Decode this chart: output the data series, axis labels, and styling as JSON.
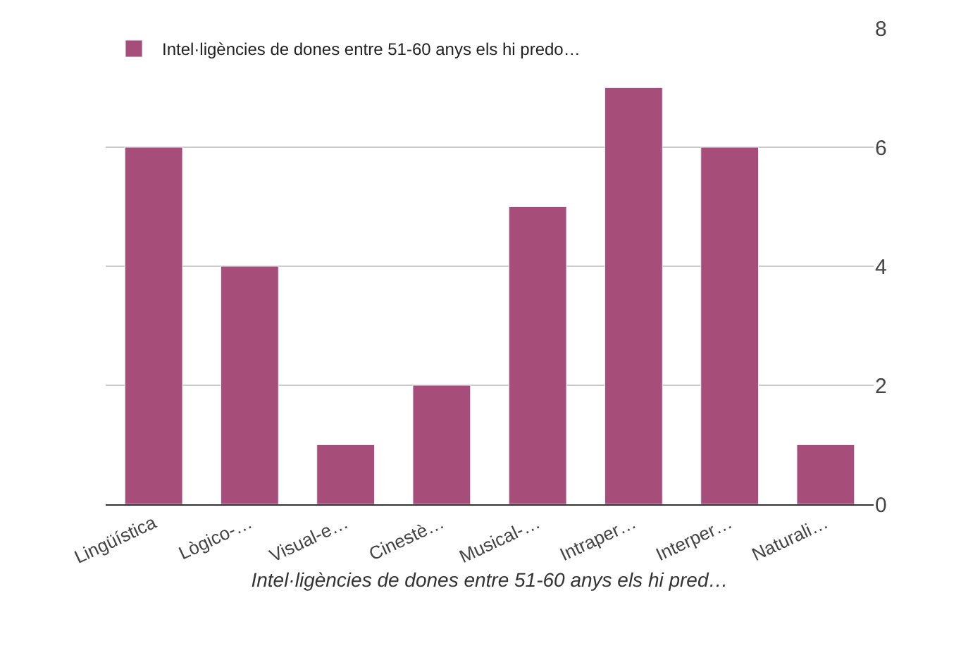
{
  "chart_data": {
    "type": "bar",
    "categories": [
      "Lingüística",
      "Lògico-…",
      "Visual-e…",
      "Cinestè…",
      "Musical-…",
      "Intraper…",
      "Interper…",
      "Naturali…"
    ],
    "series": [
      {
        "name": "Intel·ligències de dones entre 51-60 anys els hi predo…",
        "color": "#a64d79",
        "values": [
          6,
          4,
          1,
          2,
          5,
          7,
          6,
          1
        ]
      }
    ],
    "xlabel": "Intel·ligències de dones entre 51-60 anys els hi pred…",
    "ylim": [
      0,
      8
    ],
    "yticks": [
      0,
      2,
      4,
      6,
      8
    ],
    "grid": "y",
    "legend": "top left"
  }
}
